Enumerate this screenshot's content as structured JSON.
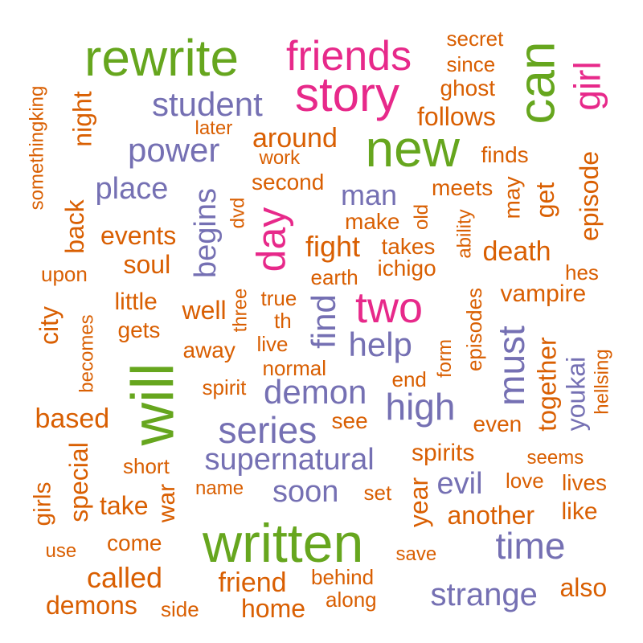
{
  "palette": {
    "orange": "#d95f02",
    "purple": "#7570b3",
    "magenta": "#e7298a",
    "green": "#66a61e"
  },
  "words": [
    {
      "text": "rewrite",
      "color": "green"
    },
    {
      "text": "friends",
      "color": "magenta"
    },
    {
      "text": "story",
      "color": "magenta"
    },
    {
      "text": "new",
      "color": "green"
    },
    {
      "text": "can",
      "color": "green"
    },
    {
      "text": "girl",
      "color": "magenta"
    },
    {
      "text": "student",
      "color": "purple"
    },
    {
      "text": "power",
      "color": "purple"
    },
    {
      "text": "place",
      "color": "purple"
    },
    {
      "text": "man",
      "color": "purple"
    },
    {
      "text": "day",
      "color": "magenta"
    },
    {
      "text": "begins",
      "color": "purple"
    },
    {
      "text": "two",
      "color": "magenta"
    },
    {
      "text": "find",
      "color": "purple"
    },
    {
      "text": "help",
      "color": "purple"
    },
    {
      "text": "demon",
      "color": "purple"
    },
    {
      "text": "high",
      "color": "purple"
    },
    {
      "text": "must",
      "color": "purple"
    },
    {
      "text": "will",
      "color": "green"
    },
    {
      "text": "series",
      "color": "purple"
    },
    {
      "text": "supernatural",
      "color": "purple"
    },
    {
      "text": "soon",
      "color": "purple"
    },
    {
      "text": "evil",
      "color": "purple"
    },
    {
      "text": "written",
      "color": "green"
    },
    {
      "text": "time",
      "color": "purple"
    },
    {
      "text": "strange",
      "color": "purple"
    },
    {
      "text": "youkai",
      "color": "purple"
    },
    {
      "text": "secret",
      "color": "orange"
    },
    {
      "text": "since",
      "color": "orange"
    },
    {
      "text": "ghost",
      "color": "orange"
    },
    {
      "text": "follows",
      "color": "orange"
    },
    {
      "text": "somethingking",
      "color": "orange"
    },
    {
      "text": "night",
      "color": "orange"
    },
    {
      "text": "later",
      "color": "orange"
    },
    {
      "text": "around",
      "color": "orange"
    },
    {
      "text": "work",
      "color": "orange"
    },
    {
      "text": "finds",
      "color": "orange"
    },
    {
      "text": "second",
      "color": "orange"
    },
    {
      "text": "episode",
      "color": "orange"
    },
    {
      "text": "meets",
      "color": "orange"
    },
    {
      "text": "may",
      "color": "orange"
    },
    {
      "text": "get",
      "color": "orange"
    },
    {
      "text": "dvd",
      "color": "orange"
    },
    {
      "text": "make",
      "color": "orange"
    },
    {
      "text": "old",
      "color": "orange"
    },
    {
      "text": "back",
      "color": "orange"
    },
    {
      "text": "events",
      "color": "orange"
    },
    {
      "text": "fight",
      "color": "orange"
    },
    {
      "text": "takes",
      "color": "orange"
    },
    {
      "text": "ability",
      "color": "orange"
    },
    {
      "text": "death",
      "color": "orange"
    },
    {
      "text": "soul",
      "color": "orange"
    },
    {
      "text": "ichigo",
      "color": "orange"
    },
    {
      "text": "upon",
      "color": "orange"
    },
    {
      "text": "earth",
      "color": "orange"
    },
    {
      "text": "hes",
      "color": "orange"
    },
    {
      "text": "little",
      "color": "orange"
    },
    {
      "text": "true",
      "color": "orange"
    },
    {
      "text": "vampire",
      "color": "orange"
    },
    {
      "text": "city",
      "color": "orange"
    },
    {
      "text": "becomes",
      "color": "orange"
    },
    {
      "text": "well",
      "color": "orange"
    },
    {
      "text": "three",
      "color": "orange"
    },
    {
      "text": "th",
      "color": "orange"
    },
    {
      "text": "gets",
      "color": "orange"
    },
    {
      "text": "episodes",
      "color": "orange"
    },
    {
      "text": "away",
      "color": "orange"
    },
    {
      "text": "live",
      "color": "orange"
    },
    {
      "text": "form",
      "color": "orange"
    },
    {
      "text": "together",
      "color": "orange"
    },
    {
      "text": "hellsing",
      "color": "orange"
    },
    {
      "text": "normal",
      "color": "orange"
    },
    {
      "text": "spirit",
      "color": "orange"
    },
    {
      "text": "end",
      "color": "orange"
    },
    {
      "text": "based",
      "color": "orange"
    },
    {
      "text": "see",
      "color": "orange"
    },
    {
      "text": "even",
      "color": "orange"
    },
    {
      "text": "special",
      "color": "orange"
    },
    {
      "text": "spirits",
      "color": "orange"
    },
    {
      "text": "seems",
      "color": "orange"
    },
    {
      "text": "short",
      "color": "orange"
    },
    {
      "text": "girls",
      "color": "orange"
    },
    {
      "text": "name",
      "color": "orange"
    },
    {
      "text": "set",
      "color": "orange"
    },
    {
      "text": "year",
      "color": "orange"
    },
    {
      "text": "love",
      "color": "orange"
    },
    {
      "text": "lives",
      "color": "orange"
    },
    {
      "text": "take",
      "color": "orange"
    },
    {
      "text": "war",
      "color": "orange"
    },
    {
      "text": "another",
      "color": "orange"
    },
    {
      "text": "like",
      "color": "orange"
    },
    {
      "text": "use",
      "color": "orange"
    },
    {
      "text": "come",
      "color": "orange"
    },
    {
      "text": "save",
      "color": "orange"
    },
    {
      "text": "called",
      "color": "orange"
    },
    {
      "text": "friend",
      "color": "orange"
    },
    {
      "text": "behind",
      "color": "orange"
    },
    {
      "text": "also",
      "color": "orange"
    },
    {
      "text": "demons",
      "color": "orange"
    },
    {
      "text": "side",
      "color": "orange"
    },
    {
      "text": "home",
      "color": "orange"
    },
    {
      "text": "along",
      "color": "orange"
    }
  ]
}
